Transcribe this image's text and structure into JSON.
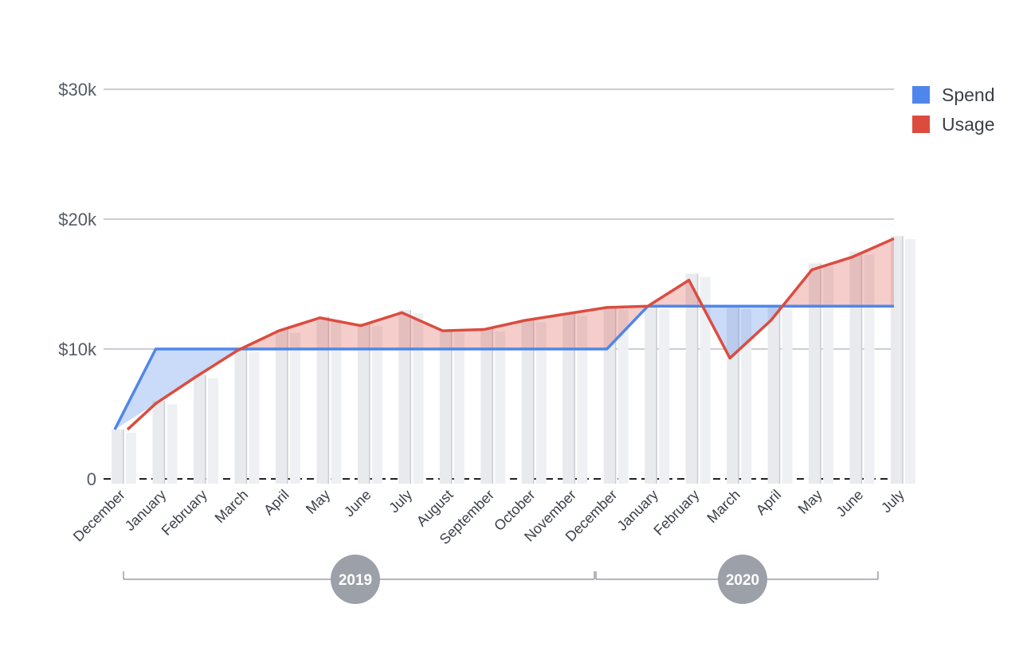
{
  "chart_data": {
    "type": "line",
    "x": [
      "December",
      "January",
      "February",
      "March",
      "April",
      "May",
      "June",
      "July",
      "August",
      "September",
      "October",
      "November",
      "December",
      "January",
      "February",
      "March",
      "April",
      "May",
      "June",
      "July"
    ],
    "years": [
      {
        "label": "2019"
      },
      {
        "label": "2020"
      }
    ],
    "series": [
      {
        "name": "Spend",
        "color": "#4f86ec",
        "values": [
          3800,
          10000,
          10000,
          10000,
          10000,
          10000,
          10000,
          10000,
          10000,
          10000,
          10000,
          10000,
          10000,
          13300,
          13300,
          13300,
          13300,
          13300,
          13300,
          13300
        ]
      },
      {
        "name": "Usage",
        "color": "#db4c3f",
        "values": [
          3800,
          5800,
          7900,
          9900,
          11400,
          12400,
          11800,
          12800,
          11400,
          11500,
          12200,
          12700,
          13200,
          13300,
          15300,
          9300,
          12200,
          16100,
          17100,
          18500
        ]
      }
    ],
    "bar_values": [
      3800,
      6000,
      8000,
      10000,
      11500,
      12500,
      12000,
      13000,
      11500,
      11600,
      12300,
      12800,
      13300,
      13300,
      15800,
      13300,
      13300,
      16600,
      17500,
      18700
    ],
    "bar_color": "#e8eaee",
    "yticks": [
      {
        "value": 0,
        "label": "0"
      },
      {
        "value": 10000,
        "label": "$10k"
      },
      {
        "value": 20000,
        "label": "$20k"
      },
      {
        "value": 30000,
        "label": "$30k"
      }
    ],
    "ylim": [
      0,
      30000
    ],
    "grid": true,
    "legend_position": "top-right"
  }
}
